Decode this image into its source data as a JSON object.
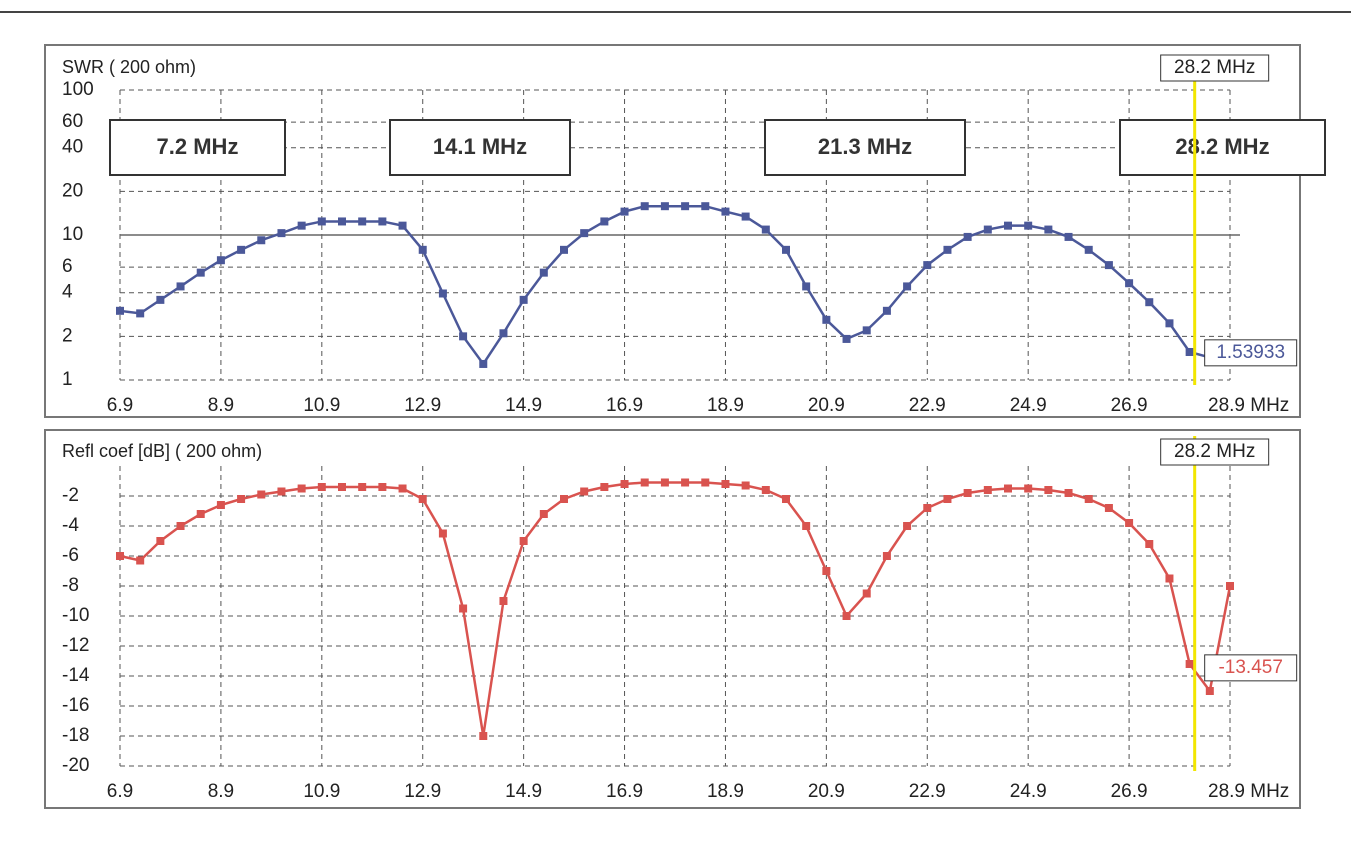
{
  "chart_data": [
    {
      "type": "line",
      "title": "SWR ( 200 ohm)",
      "log_scale": true,
      "grid": true,
      "x": [
        6.9,
        7.3,
        7.7,
        8.1,
        8.5,
        8.9,
        9.3,
        9.7,
        10.1,
        10.5,
        10.9,
        11.3,
        11.7,
        12.1,
        12.5,
        12.9,
        13.3,
        13.7,
        14.1,
        14.5,
        14.9,
        15.3,
        15.7,
        16.1,
        16.5,
        16.9,
        17.3,
        17.7,
        18.1,
        18.5,
        18.9,
        19.3,
        19.7,
        20.1,
        20.5,
        20.9,
        21.3,
        21.7,
        22.1,
        22.5,
        22.9,
        23.3,
        23.7,
        24.1,
        24.5,
        24.9,
        25.3,
        25.7,
        26.1,
        26.5,
        26.9,
        27.3,
        27.7,
        28.1,
        28.5,
        28.9
      ],
      "series": [
        {
          "color": "#4b5899",
          "values": [
            3.0,
            2.88,
            3.57,
            4.42,
            5.5,
            6.7,
            7.9,
            9.2,
            10.3,
            11.6,
            12.4,
            12.4,
            12.4,
            12.4,
            11.6,
            7.9,
            3.95,
            2.0,
            1.29,
            2.1,
            3.57,
            5.5,
            7.9,
            10.3,
            12.4,
            14.5,
            15.8,
            15.8,
            15.8,
            15.8,
            14.5,
            13.4,
            10.9,
            7.9,
            4.42,
            2.6,
            1.92,
            2.2,
            3.0,
            4.42,
            6.2,
            7.9,
            9.7,
            10.9,
            11.6,
            11.6,
            10.9,
            9.7,
            7.9,
            6.2,
            4.65,
            3.44,
            2.46,
            1.56,
            1.43,
            null
          ]
        }
      ],
      "xlim": [
        6.9,
        28.9
      ],
      "xticks": [
        6.9,
        8.9,
        10.9,
        12.9,
        14.9,
        16.9,
        18.9,
        20.9,
        22.9,
        24.9,
        26.9,
        {
          "value": 28.9,
          "label": "28.9 MHz"
        }
      ],
      "ylim": [
        1,
        100
      ],
      "yticks": [
        1,
        2,
        4,
        6,
        10,
        20,
        40,
        60,
        100
      ],
      "reference_line": 10,
      "marker": {
        "x": 28.2,
        "label": "28.2 MHz",
        "value": 1.53933,
        "color": "#f2e600"
      },
      "band_labels": [
        "7.2 MHz",
        "14.1 MHz",
        "21.3 MHz",
        "28.2 MHz"
      ]
    },
    {
      "type": "line",
      "title": "Refl coef [dB] ( 200 ohm)",
      "log_scale": false,
      "grid": true,
      "x": [
        6.9,
        7.3,
        7.7,
        8.1,
        8.5,
        8.9,
        9.3,
        9.7,
        10.1,
        10.5,
        10.9,
        11.3,
        11.7,
        12.1,
        12.5,
        12.9,
        13.3,
        13.7,
        14.1,
        14.5,
        14.9,
        15.3,
        15.7,
        16.1,
        16.5,
        16.9,
        17.3,
        17.7,
        18.1,
        18.5,
        18.9,
        19.3,
        19.7,
        20.1,
        20.5,
        20.9,
        21.3,
        21.7,
        22.1,
        22.5,
        22.9,
        23.3,
        23.7,
        24.1,
        24.5,
        24.9,
        25.3,
        25.7,
        26.1,
        26.5,
        26.9,
        27.3,
        27.7,
        28.1,
        28.5,
        28.9
      ],
      "series": [
        {
          "color": "#d9534f",
          "values": [
            -6,
            -6.3,
            -5,
            -4,
            -3.2,
            -2.6,
            -2.2,
            -1.9,
            -1.7,
            -1.5,
            -1.4,
            -1.4,
            -1.4,
            -1.4,
            -1.5,
            -2.2,
            -4.5,
            -9.5,
            -18,
            -9,
            -5,
            -3.2,
            -2.2,
            -1.7,
            -1.4,
            -1.2,
            -1.1,
            -1.1,
            -1.1,
            -1.1,
            -1.2,
            -1.3,
            -1.6,
            -2.2,
            -4,
            -7,
            -10,
            -8.5,
            -6,
            -4,
            -2.8,
            -2.2,
            -1.8,
            -1.6,
            -1.5,
            -1.5,
            -1.6,
            -1.8,
            -2.2,
            -2.8,
            -3.8,
            -5.2,
            -7.5,
            -13.2,
            -15,
            -8
          ]
        }
      ],
      "xlim": [
        6.9,
        28.9
      ],
      "xticks": [
        6.9,
        8.9,
        10.9,
        12.9,
        14.9,
        16.9,
        18.9,
        20.9,
        22.9,
        24.9,
        26.9,
        {
          "value": 28.9,
          "label": "28.9 MHz"
        }
      ],
      "ylim": [
        -20,
        0
      ],
      "yticks": [
        -2,
        -4,
        -6,
        -8,
        -10,
        -12,
        -14,
        -16,
        -18,
        -20
      ],
      "marker": {
        "x": 28.2,
        "label": "28.2 MHz",
        "value": -13.457,
        "color": "#f2e600"
      }
    }
  ]
}
